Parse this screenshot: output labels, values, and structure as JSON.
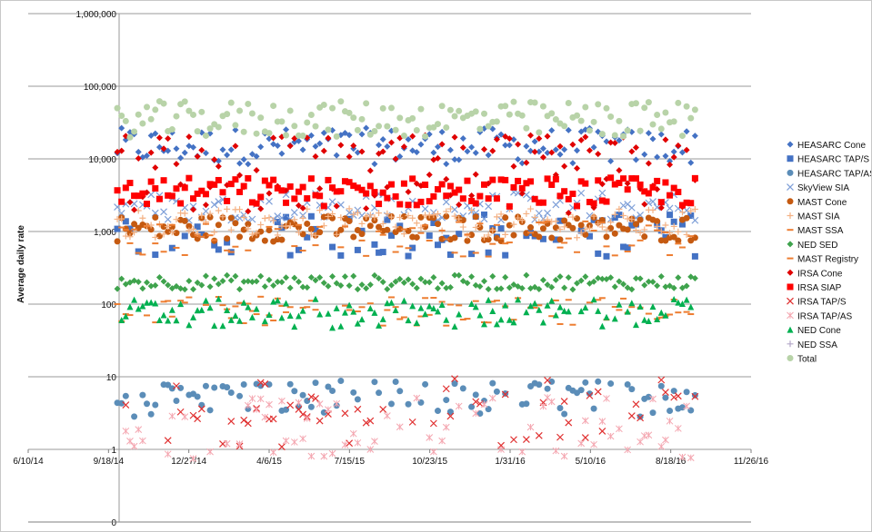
{
  "chart_data": {
    "type": "scatter",
    "title": "",
    "xlabel": "",
    "ylabel": "Average daily rate",
    "y_scale": "log",
    "ylim": [
      0,
      1000000
    ],
    "y_ticks": [
      "1,000,000",
      "100,000",
      "10,000",
      "1,000",
      "100",
      "10",
      "1",
      "0"
    ],
    "x_ticks": [
      "6/10/14",
      "9/18/14",
      "12/27/14",
      "4/6/15",
      "7/15/15",
      "10/23/15",
      "1/31/16",
      "5/10/16",
      "8/18/16",
      "11/26/16"
    ],
    "xlim": [
      "6/10/14",
      "11/26/16"
    ],
    "grid": "horizontal",
    "legend_position": "right",
    "series": [
      {
        "name": "HEASARC Cone",
        "marker": "diamond",
        "color": "#4472C4",
        "baseline": 15000,
        "decay": 0.5,
        "amp": 0.25,
        "density": 1,
        "end": "9/20/16"
      },
      {
        "name": "HEASARC TAP/S",
        "marker": "square",
        "color": "#4472C4",
        "baseline": 900,
        "decay": 0,
        "amp": 0.3,
        "density": 0.55,
        "end": "9/20/16"
      },
      {
        "name": "HEASARC TAP/AS",
        "marker": "circle",
        "color": "#5B8DB8",
        "baseline": 5,
        "decay": 0,
        "amp": 0.25,
        "density": 0.7,
        "end": "9/20/16"
      },
      {
        "name": "SkyView SIA",
        "marker": "x",
        "color": "#7E9FD8",
        "baseline": 2200,
        "decay": 0,
        "amp": 0.2,
        "density": 0.8,
        "end": "9/20/16"
      },
      {
        "name": "MAST Cone",
        "marker": "circle",
        "color": "#C55A11",
        "baseline": 1100,
        "decay": 0,
        "amp": 0.18,
        "density": 1,
        "end": "9/20/16"
      },
      {
        "name": "MAST SIA",
        "marker": "plus",
        "color": "#F4B183",
        "baseline": 1300,
        "decay": 0,
        "amp": 0.2,
        "density": 1,
        "end": "9/20/16"
      },
      {
        "name": "MAST SSA",
        "marker": "dash",
        "color": "#ED7D31",
        "baseline": 800,
        "decay": 0,
        "amp": 0.25,
        "density": 0.6,
        "end": "9/20/16"
      },
      {
        "name": "NED SED",
        "marker": "diamond",
        "color": "#3FA34D",
        "baseline": 200,
        "decay": 0,
        "amp": 0.1,
        "density": 1,
        "end": "9/20/16"
      },
      {
        "name": "MAST Registry",
        "marker": "dash",
        "color": "#ED7D31",
        "baseline": 80,
        "decay": 0,
        "amp": 0.2,
        "density": 0.7,
        "end": "9/20/16"
      },
      {
        "name": "IRSA Cone",
        "marker": "diamond",
        "color": "#E00000",
        "baseline": 6000,
        "decay": 0,
        "amp": 0.55,
        "density": 0.9,
        "end": "9/20/16"
      },
      {
        "name": "IRSA SIAP",
        "marker": "square",
        "color": "#FF0000",
        "baseline": 3500,
        "decay": 0,
        "amp": 0.2,
        "density": 1,
        "end": "9/20/16"
      },
      {
        "name": "IRSA TAP/S",
        "marker": "x",
        "color": "#E03030",
        "baseline": 3,
        "decay": 0,
        "amp": 0.5,
        "density": 0.45,
        "end": "9/20/16"
      },
      {
        "name": "IRSA TAP/AS",
        "marker": "star",
        "color": "#F4A6B0",
        "baseline": 2,
        "decay": 0,
        "amp": 0.45,
        "density": 0.5,
        "end": "9/20/16"
      },
      {
        "name": "NED Cone",
        "marker": "triangle",
        "color": "#00B050",
        "baseline": 75,
        "decay": 0,
        "amp": 0.2,
        "density": 0.9,
        "end": "9/20/16"
      },
      {
        "name": "NED SSA",
        "marker": "plus",
        "color": "#B4A7C8",
        "baseline": 0,
        "decay": 0,
        "amp": 0,
        "density": 0,
        "end": "9/20/16"
      },
      {
        "name": "Total",
        "marker": "circle",
        "color": "#B8D3A8",
        "baseline": 35000,
        "decay": 0,
        "amp": 0.25,
        "density": 1,
        "end": "9/20/16"
      }
    ]
  }
}
